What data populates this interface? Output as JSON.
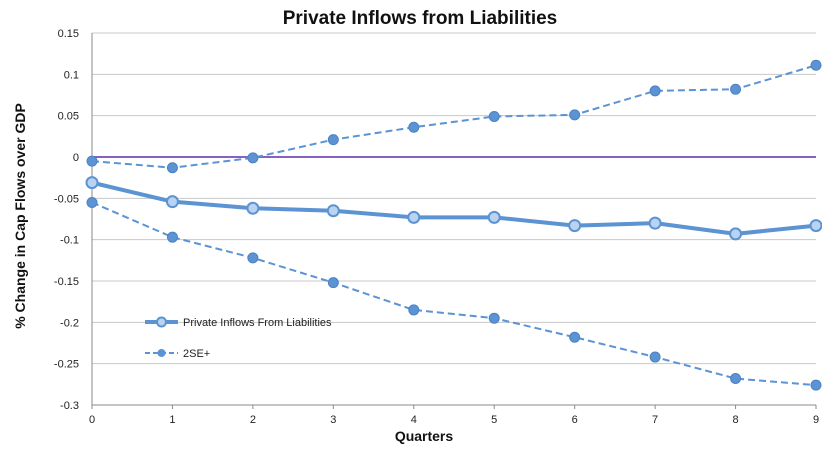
{
  "chart_data": {
    "type": "line",
    "title": "Private Inflows from Liabilities",
    "xlabel": "Quarters",
    "ylabel": "% Change in Cap Flows over  GDP",
    "x": [
      0,
      1,
      2,
      3,
      4,
      5,
      6,
      7,
      8,
      9
    ],
    "xlim": [
      0,
      9
    ],
    "ylim": [
      -0.3,
      0.15
    ],
    "yticks": [
      0.15,
      0.1,
      0.05,
      0,
      -0.05,
      -0.1,
      -0.15,
      -0.2,
      -0.25,
      -0.3
    ],
    "ytick_labels": [
      "0.15",
      "0.1",
      "0.05",
      "0",
      "-0.05",
      "-0.1",
      "-0.15",
      "-0.2",
      "-0.25",
      "-0.3"
    ],
    "xtick_labels": [
      "0",
      "1",
      "2",
      "3",
      "4",
      "5",
      "6",
      "7",
      "8",
      "9"
    ],
    "grid": "horizontal",
    "zero_line_color": "#8a5fc4",
    "legend_position": "lower-left",
    "series": [
      {
        "name": "Private Inflows From Liabilities",
        "style": "solid",
        "color": "#5b93d3",
        "values": [
          -0.031,
          -0.054,
          -0.062,
          -0.065,
          -0.073,
          -0.073,
          -0.083,
          -0.08,
          -0.093,
          -0.083
        ]
      },
      {
        "name": "2SE+",
        "style": "dashed",
        "color": "#5b93d3",
        "values": [
          -0.005,
          -0.013,
          -0.001,
          0.021,
          0.036,
          0.049,
          0.051,
          0.08,
          0.082,
          0.111
        ]
      },
      {
        "style": "dashed",
        "color": "#5b93d3",
        "values": [
          -0.055,
          -0.097,
          -0.122,
          -0.152,
          -0.185,
          -0.195,
          -0.218,
          -0.242,
          -0.268,
          -0.276
        ]
      }
    ]
  }
}
